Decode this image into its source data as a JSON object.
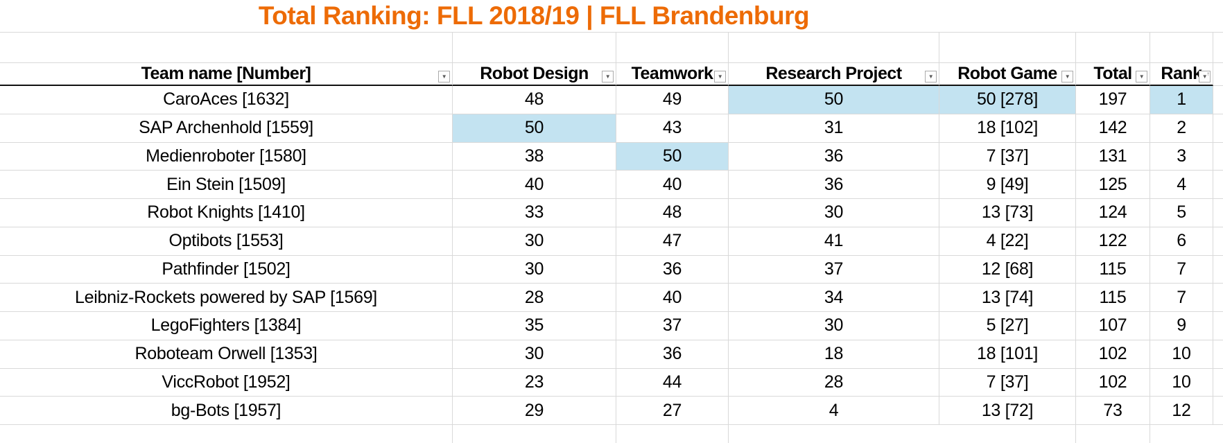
{
  "title": "Total Ranking: FLL 2018/19 | FLL Brandenburg",
  "colors": {
    "title_orange": "#ed6b06",
    "highlight_blue": "#c3e3f1",
    "gridline_gray": "#d9d9d9"
  },
  "table": {
    "columns": [
      {
        "label": "Team name [Number]",
        "filter": "dropdown"
      },
      {
        "label": "Robot Design",
        "filter": "dropdown"
      },
      {
        "label": "Teamwork",
        "filter": "dropdown"
      },
      {
        "label": "Research Project",
        "filter": "dropdown"
      },
      {
        "label": "Robot Game",
        "filter": "dropdown"
      },
      {
        "label": "Total",
        "filter": "dropdown"
      },
      {
        "label": "Rank",
        "filter": "dropdown-sorted-ascending"
      }
    ],
    "rows": [
      {
        "team": "CaroAces [1632]",
        "robot_design": "48",
        "teamwork": "49",
        "research_project": "50",
        "robot_game": "50 [278]",
        "total": "197",
        "rank": "1",
        "highlight": [
          "research_project",
          "robot_game",
          "rank"
        ]
      },
      {
        "team": "SAP Archenhold [1559]",
        "robot_design": "50",
        "teamwork": "43",
        "research_project": "31",
        "robot_game": "18 [102]",
        "total": "142",
        "rank": "2",
        "highlight": [
          "robot_design"
        ]
      },
      {
        "team": "Medienroboter [1580]",
        "robot_design": "38",
        "teamwork": "50",
        "research_project": "36",
        "robot_game": "7 [37]",
        "total": "131",
        "rank": "3",
        "highlight": [
          "teamwork"
        ]
      },
      {
        "team": "Ein Stein [1509]",
        "robot_design": "40",
        "teamwork": "40",
        "research_project": "36",
        "robot_game": "9 [49]",
        "total": "125",
        "rank": "4",
        "highlight": []
      },
      {
        "team": "Robot Knights [1410]",
        "robot_design": "33",
        "teamwork": "48",
        "research_project": "30",
        "robot_game": "13 [73]",
        "total": "124",
        "rank": "5",
        "highlight": []
      },
      {
        "team": "Optibots [1553]",
        "robot_design": "30",
        "teamwork": "47",
        "research_project": "41",
        "robot_game": "4 [22]",
        "total": "122",
        "rank": "6",
        "highlight": []
      },
      {
        "team": "Pathfinder [1502]",
        "robot_design": "30",
        "teamwork": "36",
        "research_project": "37",
        "robot_game": "12 [68]",
        "total": "115",
        "rank": "7",
        "highlight": []
      },
      {
        "team": "Leibniz-Rockets powered by SAP [1569]",
        "robot_design": "28",
        "teamwork": "40",
        "research_project": "34",
        "robot_game": "13 [74]",
        "total": "115",
        "rank": "7",
        "highlight": []
      },
      {
        "team": "LegoFighters [1384]",
        "robot_design": "35",
        "teamwork": "37",
        "research_project": "30",
        "robot_game": "5 [27]",
        "total": "107",
        "rank": "9",
        "highlight": []
      },
      {
        "team": "Roboteam Orwell [1353]",
        "robot_design": "30",
        "teamwork": "36",
        "research_project": "18",
        "robot_game": "18 [101]",
        "total": "102",
        "rank": "10",
        "highlight": []
      },
      {
        "team": "ViccRobot [1952]",
        "robot_design": "23",
        "teamwork": "44",
        "research_project": "28",
        "robot_game": "7 [37]",
        "total": "102",
        "rank": "10",
        "highlight": []
      },
      {
        "team": "bg-Bots [1957]",
        "robot_design": "29",
        "teamwork": "27",
        "research_project": "4",
        "robot_game": "13 [72]",
        "total": "73",
        "rank": "12",
        "highlight": []
      }
    ]
  }
}
